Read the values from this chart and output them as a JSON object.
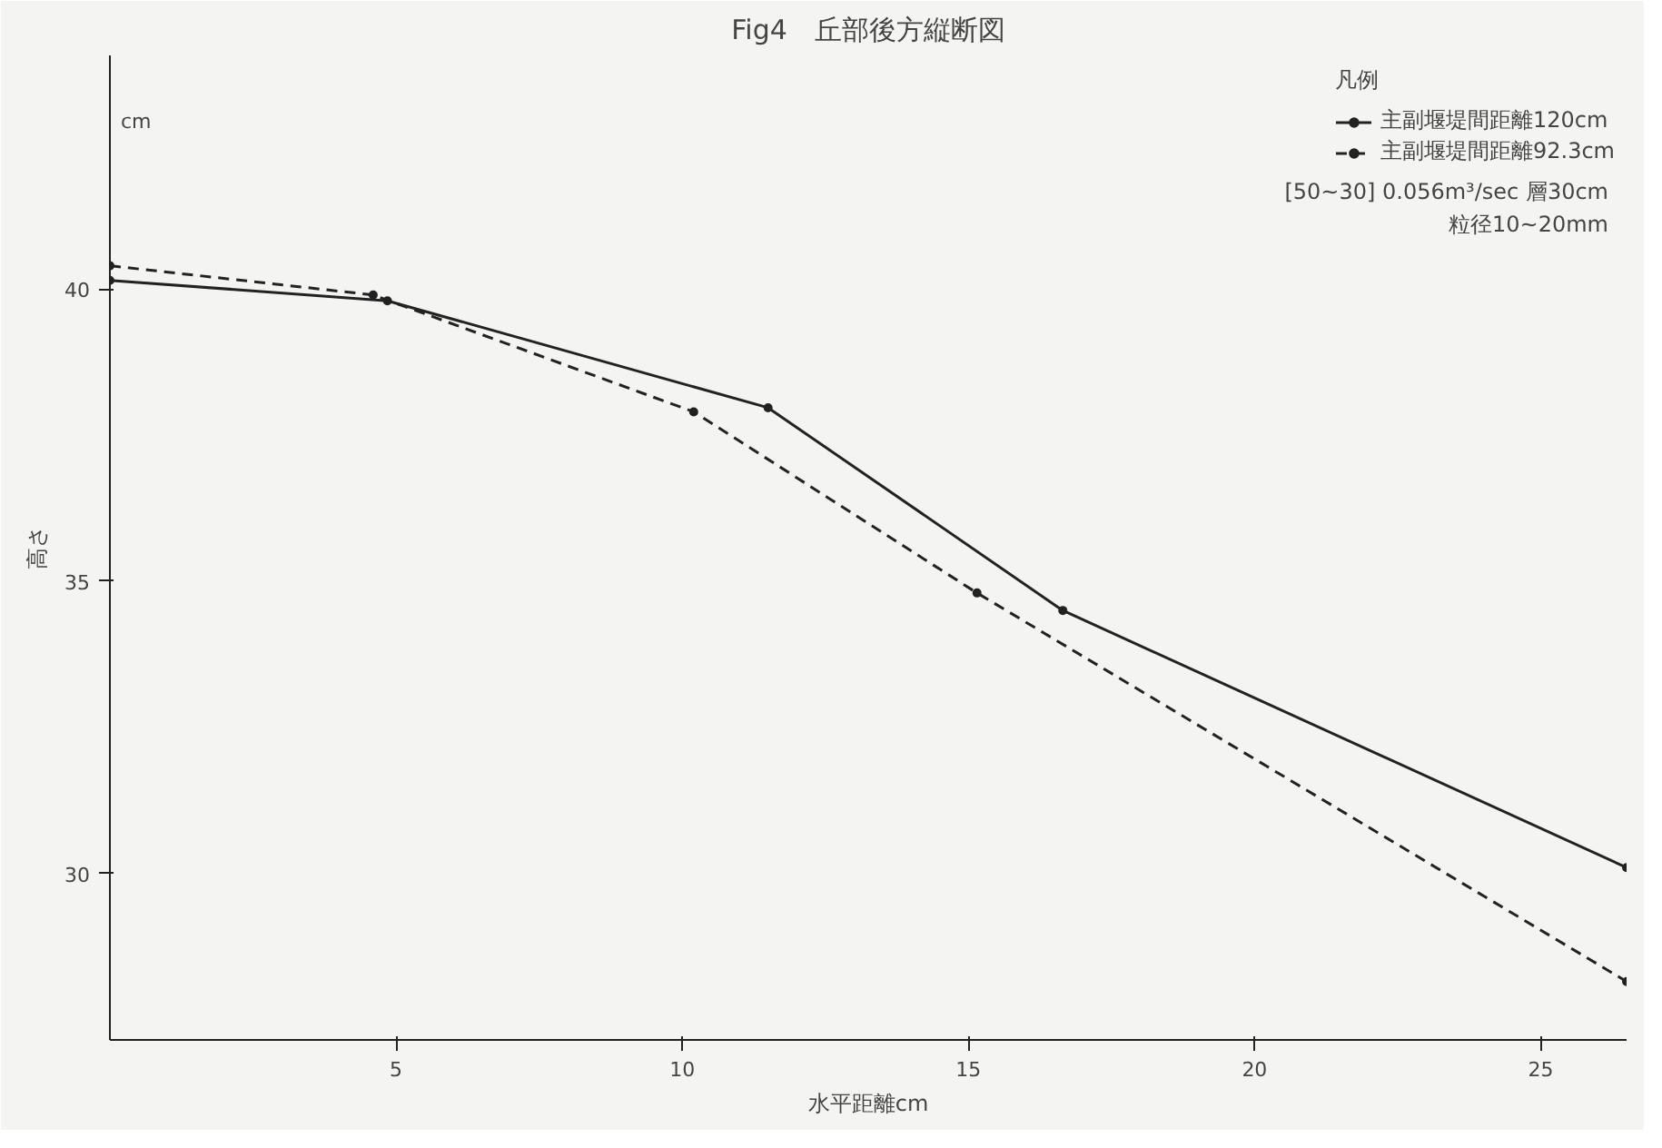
{
  "chart_data": {
    "type": "line",
    "title": "Fig4　丘部後方縦断図",
    "xlabel": "水平距離cm",
    "ylabel": "高さ",
    "legend_title": "凡例",
    "legend": "top right",
    "marker": "circle",
    "grid": false,
    "xlim": [
      0,
      26.5
    ],
    "ylim": [
      27.15,
      44
    ],
    "xticks": [
      5,
      10,
      15,
      20,
      25
    ],
    "yticks": [
      30,
      35,
      40
    ],
    "annotations": [
      "cm",
      "[50~30] 0.056m³/sec 層30cm",
      "粒径10~20mm"
    ],
    "series": [
      {
        "name": "主副堰堤間距離120cm",
        "color": "#222222",
        "line_style": "solid",
        "x": [
          0,
          4.85,
          11.5,
          16.65,
          26.5
        ],
        "values": [
          40.15,
          39.8,
          37.97,
          34.5,
          30.1
        ]
      },
      {
        "name": "主副堰堤間距離92.3cm",
        "color": "#222222",
        "line_style": "dashed",
        "x": [
          0,
          4.6,
          10.2,
          15.15,
          26.5
        ],
        "values": [
          40.4,
          39.9,
          37.9,
          34.8,
          28.15
        ]
      }
    ]
  }
}
